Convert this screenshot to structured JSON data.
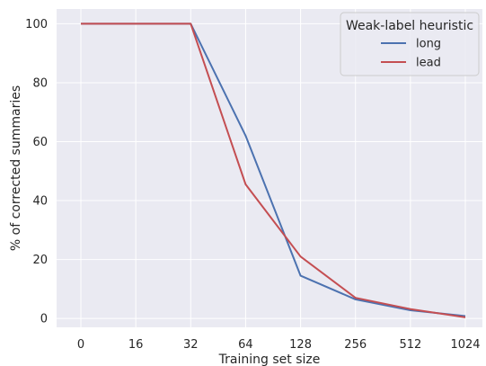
{
  "chart_data": {
    "type": "line",
    "x": [
      "0",
      "16",
      "32",
      "64",
      "128",
      "256",
      "512",
      "1024"
    ],
    "xlabel": "Training set size",
    "ylabel": "% of corrected summaries",
    "ylim": [
      -3,
      105
    ],
    "yticks": [
      0,
      20,
      40,
      60,
      80,
      100
    ],
    "grid": true,
    "legend": {
      "title": "Weak-label heuristic",
      "placement": "top-right"
    },
    "series": [
      {
        "name": "long",
        "color": "#4c72b0",
        "values": [
          100,
          100,
          100,
          62,
          14.5,
          6.5,
          2.8,
          0.8
        ]
      },
      {
        "name": "lead",
        "color": "#c44e52",
        "values": [
          100,
          100,
          100,
          45.5,
          21,
          7,
          3.2,
          0.4
        ]
      }
    ]
  },
  "colors": {
    "plot_background": "#eaeaf2",
    "grid": "#ffffff"
  }
}
